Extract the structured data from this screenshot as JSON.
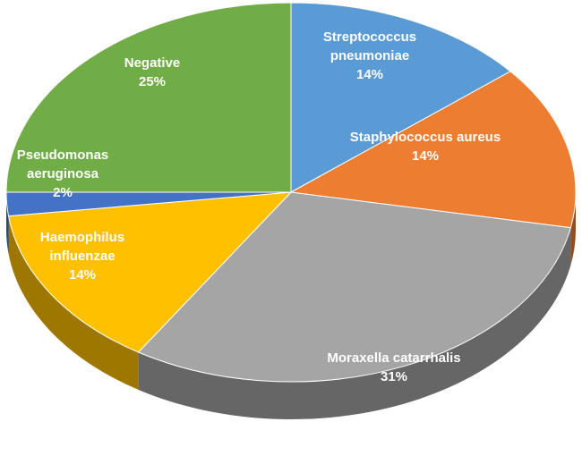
{
  "chart_data": {
    "type": "pie",
    "title": "",
    "slices": [
      {
        "label_lines": [
          "Streptococcus",
          "pneumoniae"
        ],
        "percent_label": "14%",
        "value": 14,
        "color": "#5b9bd5"
      },
      {
        "label_lines": [
          "Staphylococcus aureus"
        ],
        "percent_label": "14%",
        "value": 14,
        "color": "#ed7d31"
      },
      {
        "label_lines": [
          "Moraxella catarrhalis"
        ],
        "percent_label": "31%",
        "value": 31,
        "color": "#a5a5a5"
      },
      {
        "label_lines": [
          "Haemophilus",
          "influenzae"
        ],
        "percent_label": "14%",
        "value": 14,
        "color": "#ffc000"
      },
      {
        "label_lines": [
          "Pseudomonas",
          "aeruginosa"
        ],
        "percent_label": "2%",
        "value": 2,
        "color": "#4472c4"
      },
      {
        "label_lines": [
          "Negative"
        ],
        "percent_label": "25%",
        "value": 25,
        "color": "#70ad47"
      }
    ],
    "start_angle_deg": 0,
    "direction": "clockwise",
    "style": "3d",
    "legend": "none",
    "label_color": "#ffffff"
  }
}
